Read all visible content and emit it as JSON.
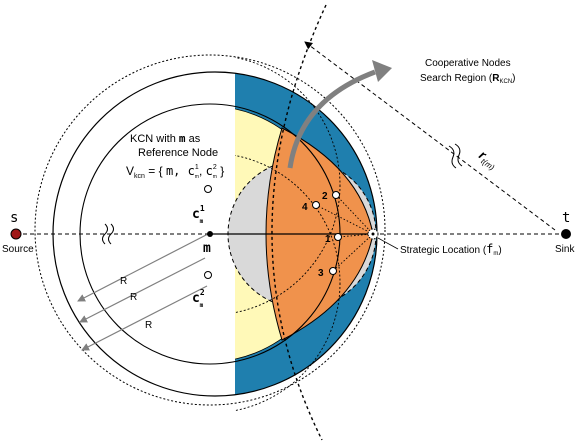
{
  "labels": {
    "search_region_line1": "Cooperative Nodes",
    "search_region_line2": "Search Region (",
    "search_region_R": "R",
    "search_region_sub": "KCN",
    "search_region_close": ")",
    "kcn_line1_a": "KCN with ",
    "kcn_line1_m": "m",
    "kcn_line1_b": " as",
    "kcn_line2": "Reference Node",
    "kcn_set_V": "V",
    "kcn_set_sub": "kcn",
    "kcn_set_open": " = { ",
    "kcn_set_m": "m, ",
    "kcn_set_c1": "c",
    "kcn_set_c1_sup": "1",
    "kcn_set_c1_sub": "m",
    "kcn_set_comma": ", ",
    "kcn_set_c2": "c",
    "kcn_set_c2_sup": "2",
    "kcn_set_c2_sub": "m",
    "kcn_set_close": " }",
    "source_symbol": "s",
    "source_label": "Source",
    "sink_symbol": "t",
    "sink_label": "Sink",
    "m_symbol": "m",
    "c1_symbol": "c",
    "c1_sup": "1",
    "c1_sub": "m",
    "c2_symbol": "c",
    "c2_sup": "2",
    "c2_sub": "m",
    "radius_label": "R",
    "rt_label": "r",
    "rt_sub": "t(m)",
    "strategic_label": "Strategic Location (",
    "strategic_f": "f",
    "strategic_sub": "m",
    "strategic_close": ")",
    "node_labels": [
      "1",
      "2",
      "3",
      "4"
    ]
  },
  "colors": {
    "blue_region": "#1f7fae",
    "orange_region": "#f0924c",
    "yellow_region": "#fff9b8",
    "gray_region": "#d9d9d9",
    "node_dark": "#a01818",
    "arrow_gray": "#808080"
  }
}
